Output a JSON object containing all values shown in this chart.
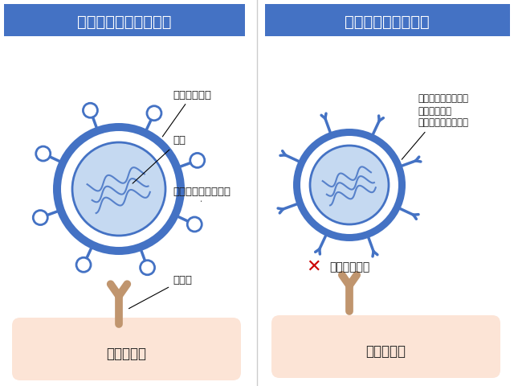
{
  "bg_color": "#ffffff",
  "header_color": "#4472c4",
  "header_text_color": "#ffffff",
  "title_left": "ウィルス感染の仕組み",
  "title_right": "結合阵害のイメージ",
  "virus_color": "#4472c4",
  "virus_ring_color": "#4472c4",
  "virus_inner_color": "#c5d9f1",
  "receptor_color": "#c0956e",
  "cell_color": "#fce4d6",
  "label_color": "#1a1a1a",
  "label_envelope": "エンベロープ",
  "label_nucleic": "核酸",
  "label_spike": "スパイクタンパク質",
  "label_receptor": "受容体",
  "label_cell_left": "ヒトの細胞",
  "label_cell_right": "ヒトの細胞",
  "annotation_right": "ラジカル触媒により\n不活性化した\nスパイクタンパク質",
  "label_cannot_bind": "結合できない",
  "x_color": "#cc0000",
  "divider_color": "#cccccc"
}
